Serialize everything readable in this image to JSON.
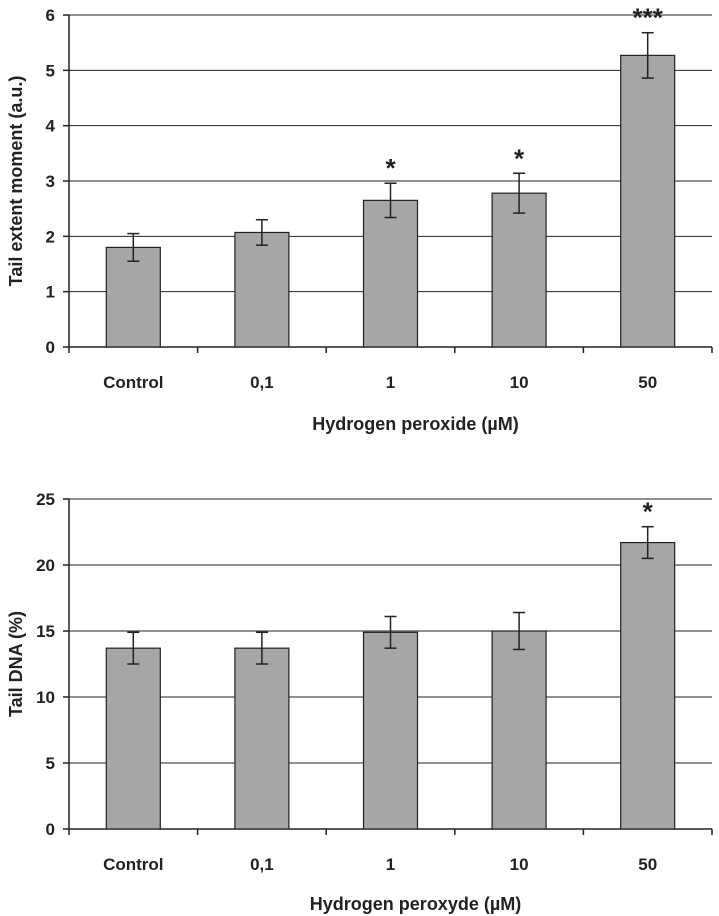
{
  "chart_data": [
    {
      "type": "bar",
      "categories": [
        "Control",
        "0,1",
        "1",
        "10",
        "50"
      ],
      "values": [
        1.8,
        2.07,
        2.65,
        2.78,
        5.27
      ],
      "errors": [
        0.25,
        0.23,
        0.31,
        0.36,
        0.41
      ],
      "significance": [
        "",
        "",
        "*",
        "*",
        "***"
      ],
      "xlabel": "Hydrogen peroxide (µM)",
      "ylabel": "Tail extent moment (a.u.)",
      "ylim": [
        0,
        6
      ],
      "yticks": [
        0,
        1,
        2,
        3,
        4,
        5,
        6
      ],
      "grid": true,
      "bar_color": "#a6a6a6"
    },
    {
      "type": "bar",
      "categories": [
        "Control",
        "0,1",
        "1",
        "10",
        "50"
      ],
      "values": [
        13.7,
        13.7,
        14.9,
        15.0,
        21.7
      ],
      "errors": [
        1.2,
        1.2,
        1.2,
        1.4,
        1.2
      ],
      "significance": [
        "",
        "",
        "",
        "",
        "*"
      ],
      "xlabel": "Hydrogen peroxyde (µM)",
      "ylabel": "Tail DNA (%)",
      "ylim": [
        0,
        25
      ],
      "yticks": [
        0,
        5,
        10,
        15,
        20,
        25
      ],
      "grid": true,
      "bar_color": "#a6a6a6"
    }
  ]
}
